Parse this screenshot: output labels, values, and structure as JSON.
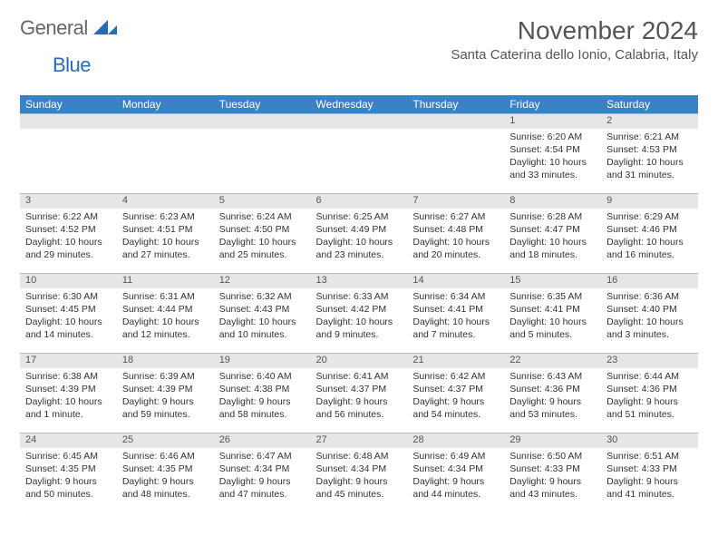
{
  "logo": {
    "text1": "General",
    "text2": "Blue"
  },
  "title": "November 2024",
  "location": "Santa Caterina dello Ionio, Calabria, Italy",
  "colors": {
    "header_bg": "#3a82c4",
    "header_text": "#ffffff",
    "daynum_bg": "#e6e6e6",
    "daynum_text": "#555555",
    "body_text": "#333333",
    "logo_gray": "#666666",
    "logo_blue": "#2a6bb8",
    "page_bg": "#ffffff"
  },
  "weekdays": [
    "Sunday",
    "Monday",
    "Tuesday",
    "Wednesday",
    "Thursday",
    "Friday",
    "Saturday"
  ],
  "weeks": [
    [
      null,
      null,
      null,
      null,
      null,
      {
        "n": "1",
        "sr": "6:20 AM",
        "ss": "4:54 PM",
        "dl": "10 hours and 33 minutes."
      },
      {
        "n": "2",
        "sr": "6:21 AM",
        "ss": "4:53 PM",
        "dl": "10 hours and 31 minutes."
      }
    ],
    [
      {
        "n": "3",
        "sr": "6:22 AM",
        "ss": "4:52 PM",
        "dl": "10 hours and 29 minutes."
      },
      {
        "n": "4",
        "sr": "6:23 AM",
        "ss": "4:51 PM",
        "dl": "10 hours and 27 minutes."
      },
      {
        "n": "5",
        "sr": "6:24 AM",
        "ss": "4:50 PM",
        "dl": "10 hours and 25 minutes."
      },
      {
        "n": "6",
        "sr": "6:25 AM",
        "ss": "4:49 PM",
        "dl": "10 hours and 23 minutes."
      },
      {
        "n": "7",
        "sr": "6:27 AM",
        "ss": "4:48 PM",
        "dl": "10 hours and 20 minutes."
      },
      {
        "n": "8",
        "sr": "6:28 AM",
        "ss": "4:47 PM",
        "dl": "10 hours and 18 minutes."
      },
      {
        "n": "9",
        "sr": "6:29 AM",
        "ss": "4:46 PM",
        "dl": "10 hours and 16 minutes."
      }
    ],
    [
      {
        "n": "10",
        "sr": "6:30 AM",
        "ss": "4:45 PM",
        "dl": "10 hours and 14 minutes."
      },
      {
        "n": "11",
        "sr": "6:31 AM",
        "ss": "4:44 PM",
        "dl": "10 hours and 12 minutes."
      },
      {
        "n": "12",
        "sr": "6:32 AM",
        "ss": "4:43 PM",
        "dl": "10 hours and 10 minutes."
      },
      {
        "n": "13",
        "sr": "6:33 AM",
        "ss": "4:42 PM",
        "dl": "10 hours and 9 minutes."
      },
      {
        "n": "14",
        "sr": "6:34 AM",
        "ss": "4:41 PM",
        "dl": "10 hours and 7 minutes."
      },
      {
        "n": "15",
        "sr": "6:35 AM",
        "ss": "4:41 PM",
        "dl": "10 hours and 5 minutes."
      },
      {
        "n": "16",
        "sr": "6:36 AM",
        "ss": "4:40 PM",
        "dl": "10 hours and 3 minutes."
      }
    ],
    [
      {
        "n": "17",
        "sr": "6:38 AM",
        "ss": "4:39 PM",
        "dl": "10 hours and 1 minute."
      },
      {
        "n": "18",
        "sr": "6:39 AM",
        "ss": "4:39 PM",
        "dl": "9 hours and 59 minutes."
      },
      {
        "n": "19",
        "sr": "6:40 AM",
        "ss": "4:38 PM",
        "dl": "9 hours and 58 minutes."
      },
      {
        "n": "20",
        "sr": "6:41 AM",
        "ss": "4:37 PM",
        "dl": "9 hours and 56 minutes."
      },
      {
        "n": "21",
        "sr": "6:42 AM",
        "ss": "4:37 PM",
        "dl": "9 hours and 54 minutes."
      },
      {
        "n": "22",
        "sr": "6:43 AM",
        "ss": "4:36 PM",
        "dl": "9 hours and 53 minutes."
      },
      {
        "n": "23",
        "sr": "6:44 AM",
        "ss": "4:36 PM",
        "dl": "9 hours and 51 minutes."
      }
    ],
    [
      {
        "n": "24",
        "sr": "6:45 AM",
        "ss": "4:35 PM",
        "dl": "9 hours and 50 minutes."
      },
      {
        "n": "25",
        "sr": "6:46 AM",
        "ss": "4:35 PM",
        "dl": "9 hours and 48 minutes."
      },
      {
        "n": "26",
        "sr": "6:47 AM",
        "ss": "4:34 PM",
        "dl": "9 hours and 47 minutes."
      },
      {
        "n": "27",
        "sr": "6:48 AM",
        "ss": "4:34 PM",
        "dl": "9 hours and 45 minutes."
      },
      {
        "n": "28",
        "sr": "6:49 AM",
        "ss": "4:34 PM",
        "dl": "9 hours and 44 minutes."
      },
      {
        "n": "29",
        "sr": "6:50 AM",
        "ss": "4:33 PM",
        "dl": "9 hours and 43 minutes."
      },
      {
        "n": "30",
        "sr": "6:51 AM",
        "ss": "4:33 PM",
        "dl": "9 hours and 41 minutes."
      }
    ]
  ],
  "labels": {
    "sunrise": "Sunrise:",
    "sunset": "Sunset:",
    "daylight": "Daylight:"
  }
}
